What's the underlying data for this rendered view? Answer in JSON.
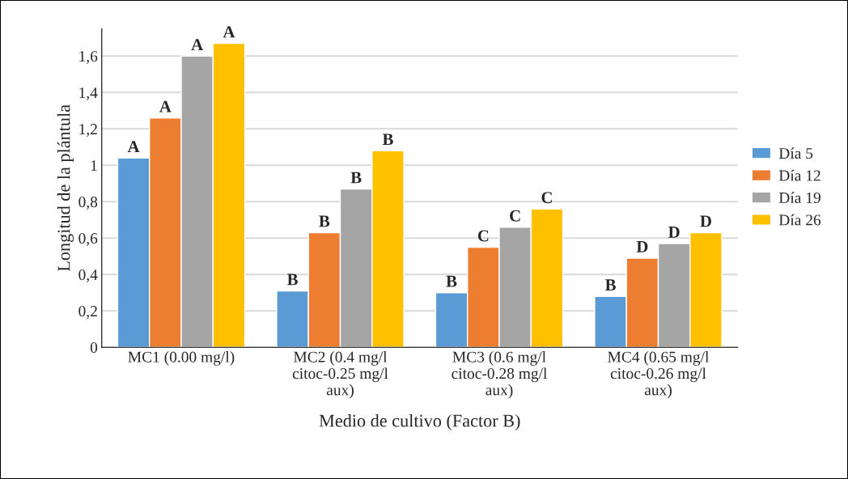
{
  "chart_data": {
    "type": "bar",
    "xlabel": "Medio de cultivo (Factor B)",
    "ylabel": "Longitud de la plántula",
    "categories": [
      "MC1 (0.00 mg/l)",
      "MC2 (0.4 mg/l\ncitoc-0.25 mg/l\naux)",
      "MC3 (0.6 mg/l\ncitoc-0.28 mg/l\naux)",
      "MC4 (0.65 mg/l\ncitoc-0.26 mg/l\naux)"
    ],
    "series": [
      {
        "name": "Día 5",
        "color": "#5b9bd5",
        "values": [
          1.04,
          0.31,
          0.3,
          0.28
        ],
        "value_labels": [
          "A",
          "B",
          "B",
          "B"
        ]
      },
      {
        "name": "Día 12",
        "color": "#ed7d31",
        "values": [
          1.26,
          0.63,
          0.55,
          0.49
        ],
        "value_labels": [
          "A",
          "B",
          "C",
          "D"
        ]
      },
      {
        "name": "Día 19",
        "color": "#a5a5a5",
        "values": [
          1.6,
          0.87,
          0.66,
          0.57
        ],
        "value_labels": [
          "A",
          "B",
          "C",
          "D"
        ]
      },
      {
        "name": "Día 26",
        "color": "#ffc000",
        "values": [
          1.67,
          1.08,
          0.76,
          0.63
        ],
        "value_labels": [
          "A",
          "B",
          "C",
          "D"
        ]
      }
    ],
    "ylim": [
      0,
      1.75
    ],
    "yticks": [
      0,
      {
        "value": 0.2,
        "label": "0,2"
      },
      {
        "value": 0.4,
        "label": "0,4"
      },
      {
        "value": 0.6,
        "label": "0,6"
      },
      {
        "value": 0.8,
        "label": "0,8"
      },
      1,
      {
        "value": 1.2,
        "label": "1,2"
      },
      {
        "value": 1.4,
        "label": "1,4"
      },
      {
        "value": 1.6,
        "label": "1,6"
      }
    ],
    "grid": "y",
    "legend": "right"
  }
}
